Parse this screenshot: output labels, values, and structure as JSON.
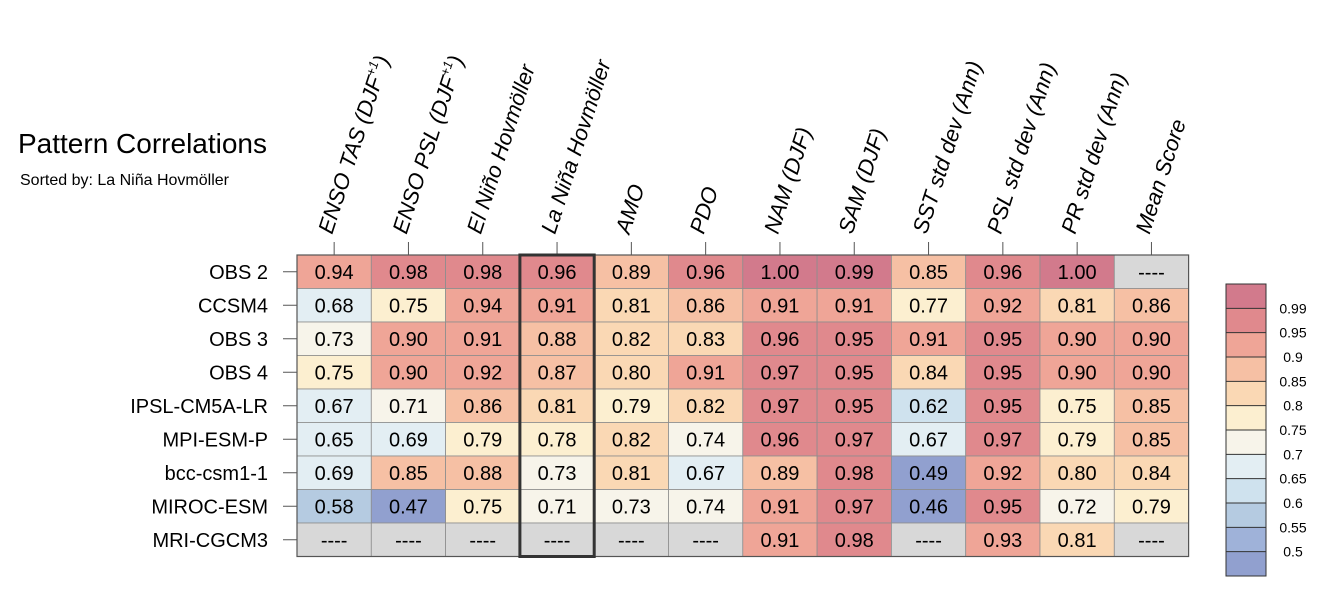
{
  "title": "Pattern Correlations",
  "subtitle": "Sorted by: La Niña Hovmöller",
  "chart_data": {
    "type": "heatmap",
    "columns": [
      "ENSO TAS (DJF+1)",
      "ENSO PSL (DJF+1)",
      "El Niño Hovmöller",
      "La Niña Hovmöller",
      "AMO",
      "PDO",
      "NAM (DJF)",
      "SAM (DJF)",
      "SST std dev (Ann)",
      "PSL std dev (Ann)",
      "PR std dev (Ann)",
      "Mean Score"
    ],
    "rows": [
      "OBS 2",
      "CCSM4",
      "OBS 3",
      "OBS 4",
      "IPSL-CM5A-LR",
      "MPI-ESM-P",
      "bcc-csm1-1",
      "MIROC-ESM",
      "MRI-CGCM3"
    ],
    "values": [
      [
        0.94,
        0.98,
        0.98,
        0.96,
        0.89,
        0.96,
        1.0,
        0.99,
        0.85,
        0.96,
        1.0,
        null
      ],
      [
        0.68,
        0.75,
        0.94,
        0.91,
        0.81,
        0.86,
        0.91,
        0.91,
        0.77,
        0.92,
        0.81,
        0.86
      ],
      [
        0.73,
        0.9,
        0.91,
        0.88,
        0.82,
        0.83,
        0.96,
        0.95,
        0.91,
        0.95,
        0.9,
        0.9
      ],
      [
        0.75,
        0.9,
        0.92,
        0.87,
        0.8,
        0.91,
        0.97,
        0.95,
        0.84,
        0.95,
        0.9,
        0.9
      ],
      [
        0.67,
        0.71,
        0.86,
        0.81,
        0.79,
        0.82,
        0.97,
        0.95,
        0.62,
        0.95,
        0.75,
        0.85
      ],
      [
        0.65,
        0.69,
        0.79,
        0.78,
        0.82,
        0.74,
        0.96,
        0.97,
        0.67,
        0.97,
        0.79,
        0.85
      ],
      [
        0.69,
        0.85,
        0.88,
        0.73,
        0.81,
        0.67,
        0.89,
        0.98,
        0.49,
        0.92,
        0.8,
        0.84
      ],
      [
        0.58,
        0.47,
        0.75,
        0.71,
        0.73,
        0.74,
        0.91,
        0.97,
        0.46,
        0.95,
        0.72,
        0.79
      ],
      [
        null,
        null,
        null,
        null,
        null,
        null,
        0.91,
        0.98,
        null,
        0.93,
        0.81,
        null
      ]
    ],
    "missing_label": "----",
    "highlight_column": "La Niña Hovmöller",
    "colorbar": {
      "levels": [
        0.99,
        0.95,
        0.9,
        0.85,
        0.8,
        0.75,
        0.7,
        0.65,
        0.6,
        0.55,
        0.5
      ],
      "labels": [
        "0.99",
        "0.95",
        "0.9",
        "0.85",
        "0.8",
        "0.75",
        "0.7",
        "0.65",
        "0.6",
        "0.55",
        "0.5"
      ],
      "colors": [
        "#d27a8c",
        "#e0898d",
        "#efa597",
        "#f6c0a4",
        "#fad8b4",
        "#fcefd0",
        "#f7f4ea",
        "#e3eef3",
        "#cfe2ee",
        "#b5cbe1",
        "#9fb2d9",
        "#91a0cf"
      ],
      "missing_color": "#d8d8d8"
    }
  }
}
